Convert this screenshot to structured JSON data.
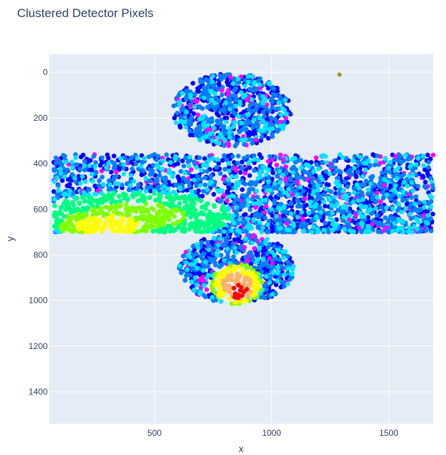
{
  "chart_data": {
    "type": "scatter",
    "title": "Clustered Detector Pixels",
    "xlabel": "x",
    "ylabel": "y",
    "xlim": [
      50,
      1690
    ],
    "ylim": [
      1540,
      -80
    ],
    "y_reversed": true,
    "x_ticks": [
      500,
      1000,
      1500
    ],
    "y_ticks": [
      0,
      200,
      400,
      600,
      800,
      1000,
      1200,
      1400
    ],
    "grid": true,
    "colors": {
      "plot_bg": "#e5ecf6",
      "grid": "#ffffff",
      "text": "#2a3f5f",
      "colorscale": [
        "#0000ff",
        "#007fff",
        "#00e5ff",
        "#00ff80",
        "#7fff00",
        "#ffff00",
        "#ffb366",
        "#ff0000"
      ],
      "outlier_color": "#9b9b14",
      "sparse_highlight": "#ff00ff"
    },
    "clusters": [
      {
        "name_shown": "",
        "shape": "band",
        "x_range": [
          70,
          1690
        ],
        "y_range": [
          360,
          700
        ]
      },
      {
        "name_shown": "",
        "shape": "ellipse",
        "center": [
          830,
          165
        ],
        "radius": [
          255,
          160
        ]
      },
      {
        "name_shown": "",
        "shape": "ellipse",
        "center": [
          850,
          860
        ],
        "radius": [
          245,
          155
        ]
      }
    ],
    "hotspots": [
      {
        "center": [
          860,
          960
        ],
        "radius": [
          60,
          50
        ],
        "level": 1.0
      },
      {
        "center": [
          850,
          930
        ],
        "radius": [
          110,
          90
        ],
        "level": 0.85
      },
      {
        "center": [
          300,
          670
        ],
        "radius": [
          220,
          70
        ],
        "level": 0.72
      },
      {
        "center": [
          420,
          630
        ],
        "radius": [
          420,
          110
        ],
        "level": 0.55
      }
    ],
    "outliers": [
      {
        "x": 1290,
        "y": 10
      }
    ]
  }
}
